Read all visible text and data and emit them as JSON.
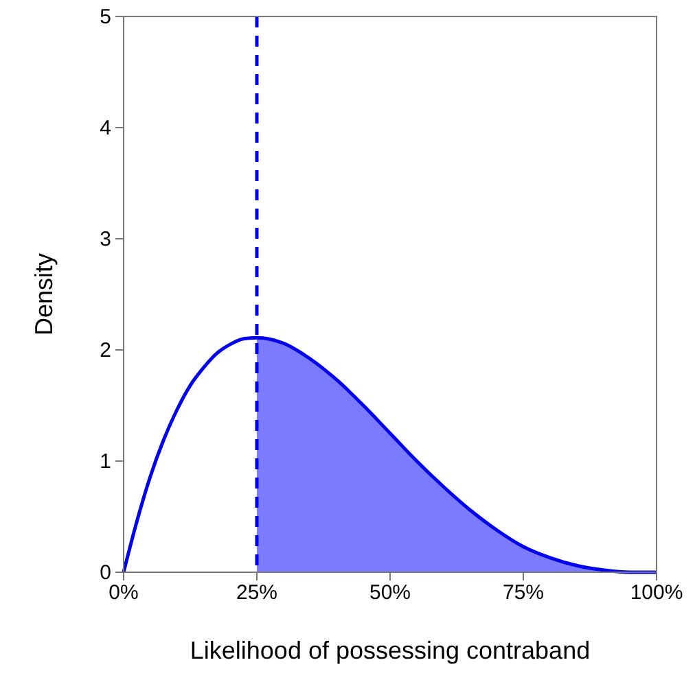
{
  "chart_data": {
    "type": "line",
    "xlabel": "Likelihood of possessing contraband",
    "ylabel": "Density",
    "xlim": [
      0,
      100
    ],
    "ylim": [
      0,
      5
    ],
    "xticks": [
      {
        "value": 0,
        "label": "0%"
      },
      {
        "value": 25,
        "label": "25%"
      },
      {
        "value": 50,
        "label": "50%"
      },
      {
        "value": 75,
        "label": "75%"
      },
      {
        "value": 100,
        "label": "100%"
      }
    ],
    "yticks": [
      0,
      1,
      2,
      3,
      4,
      5
    ],
    "grid": false,
    "series": [
      {
        "type": "area",
        "color": "#7b7bff",
        "x": [
          25,
          30,
          35,
          40,
          45,
          50,
          55,
          60,
          65,
          70,
          75,
          80,
          85,
          90,
          95,
          100
        ],
        "values": [
          2.11,
          2.06,
          1.92,
          1.73,
          1.5,
          1.25,
          1.0,
          0.77,
          0.56,
          0.38,
          0.23,
          0.13,
          0.06,
          0.02,
          0.0,
          0
        ]
      },
      {
        "color": "#0000ee",
        "line_style": "solid",
        "x": [
          0,
          2.5,
          5,
          7.5,
          10,
          12.5,
          15,
          17.5,
          20,
          22.5,
          25,
          30,
          35,
          40,
          45,
          50,
          55,
          60,
          65,
          70,
          75,
          80,
          85,
          90,
          95,
          100
        ],
        "values": [
          0,
          0.46,
          0.86,
          1.19,
          1.46,
          1.68,
          1.84,
          1.97,
          2.05,
          2.1,
          2.11,
          2.06,
          1.92,
          1.73,
          1.5,
          1.25,
          1.0,
          0.77,
          0.56,
          0.38,
          0.23,
          0.13,
          0.06,
          0.02,
          0.0,
          0
        ]
      }
    ],
    "ref_lines": [
      {
        "axis": "x",
        "value": 25,
        "color": "#0000ee",
        "line_style": "dashed"
      }
    ]
  }
}
